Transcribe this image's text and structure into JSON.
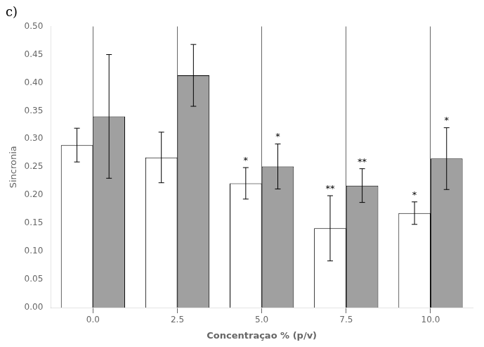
{
  "chart_data": {
    "type": "bar",
    "title": "c)",
    "xlabel": "Concentraçao % (p/v)",
    "ylabel": "Sincronia",
    "categories": [
      "0.0",
      "2.5",
      "5.0",
      "7.5",
      "10.0"
    ],
    "series": [
      {
        "color": "#ffffff",
        "values": [
          0.289,
          0.267,
          0.221,
          0.141,
          0.168
        ],
        "errors": [
          0.03,
          0.045,
          0.028,
          0.058,
          0.02
        ],
        "annotations": [
          null,
          null,
          "*",
          "**",
          "*"
        ]
      },
      {
        "color": "#a0a0a0",
        "values": [
          0.34,
          0.413,
          0.251,
          0.217,
          0.265
        ],
        "errors": [
          0.11,
          0.055,
          0.04,
          0.03,
          0.055
        ],
        "annotations": [
          null,
          null,
          "*",
          "**",
          "*"
        ]
      }
    ],
    "ylim": [
      0.0,
      0.5
    ],
    "yticks": [
      {
        "value": 0.0,
        "label": "0.00"
      },
      0.05,
      {
        "value": 0.1,
        "label": "0.10"
      },
      0.15,
      {
        "value": 0.2,
        "label": "0.20"
      },
      0.25,
      {
        "value": 0.3,
        "label": "0.30"
      },
      0.35,
      {
        "value": 0.4,
        "label": "0.40"
      },
      0.45,
      {
        "value": 0.5,
        "label": "0.50"
      }
    ],
    "grid": "x"
  }
}
